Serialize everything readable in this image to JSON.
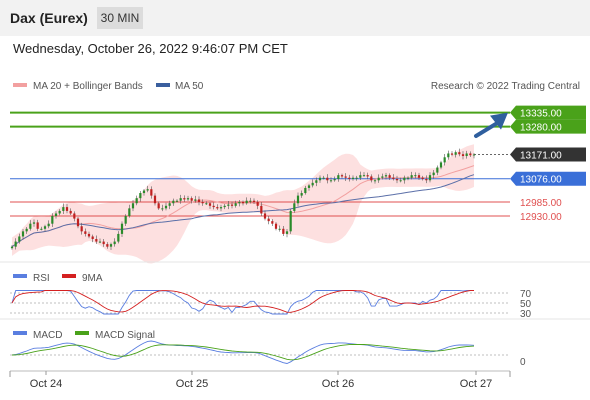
{
  "header": {
    "title": "Dax (Eurex)",
    "interval": "30 MIN"
  },
  "datetime": "Wednesday, October 26, 2022 9:46:07 PM CET",
  "legend": {
    "bb": "MA 20 + Bollinger Bands",
    "ma50": "MA 50",
    "credit": "Research © 2022 Trading Central"
  },
  "colors": {
    "resistance": "#4aa21a",
    "pivot": "#3a6fd8",
    "support": "#e05050",
    "last": "#333333",
    "ma20": "#f2a0a0",
    "band": "#fde0e0",
    "ma50": "#5b6fa8",
    "up": "#2a8a2a",
    "down": "#c02020",
    "rsi": "#5a7ee0",
    "rsi_ma": "#d42020",
    "macd": "#5a7ee0",
    "macd_signal": "#4aa21a",
    "arrow": "#2f5f9e"
  },
  "chart_data": [
    {
      "type": "candlestick",
      "x_labels": [
        "Oct 24",
        "Oct 25",
        "Oct 26",
        "Oct 27"
      ],
      "ylim": [
        12750,
        13400
      ],
      "levels": [
        {
          "value": 13335.0,
          "label": "13335.00",
          "kind": "resistance"
        },
        {
          "value": 13280.0,
          "label": "13280.00",
          "kind": "resistance"
        },
        {
          "value": 13171.0,
          "label": "13171.00",
          "kind": "last"
        },
        {
          "value": 13076.0,
          "label": "13076.00",
          "kind": "pivot"
        },
        {
          "value": 12985.0,
          "label": "12985.00",
          "kind": "support"
        },
        {
          "value": 12930.0,
          "label": "12930.00",
          "kind": "support"
        }
      ],
      "close": [
        12810,
        12830,
        12850,
        12870,
        12880,
        12900,
        12905,
        12880,
        12880,
        12890,
        12900,
        12930,
        12940,
        12950,
        12965,
        12950,
        12940,
        12920,
        12890,
        12870,
        12860,
        12850,
        12840,
        12830,
        12830,
        12820,
        12810,
        12820,
        12830,
        12860,
        12900,
        12930,
        12960,
        12980,
        13000,
        13020,
        13030,
        13035,
        13010,
        12980,
        12960,
        12960,
        12970,
        12980,
        12990,
        12990,
        13000,
        12995,
        13000,
        12990,
        12995,
        12985,
        12980,
        12980,
        12970,
        12965,
        12960,
        12965,
        12970,
        12975,
        12970,
        12980,
        12985,
        12980,
        12990,
        12990,
        12985,
        12970,
        12940,
        12920,
        12910,
        12900,
        12880,
        12880,
        12860,
        12870,
        12950,
        12980,
        13010,
        13020,
        13040,
        13050,
        13060,
        13070,
        13080,
        13080,
        13070,
        13070,
        13075,
        13090,
        13085,
        13080,
        13075,
        13080,
        13080,
        13090,
        13090,
        13085,
        13070,
        13070,
        13080,
        13085,
        13090,
        13080,
        13075,
        13070,
        13070,
        13080,
        13080,
        13090,
        13090,
        13080,
        13075,
        13070,
        13090,
        13100,
        13120,
        13140,
        13160,
        13175,
        13170,
        13180,
        13172,
        13165,
        13175,
        13168,
        13171
      ]
    },
    {
      "type": "line",
      "title": "RSI",
      "series": [
        {
          "name": "RSI"
        },
        {
          "name": "9MA"
        }
      ],
      "ticks": [
        70,
        50,
        30
      ]
    },
    {
      "type": "line",
      "title": "MACD",
      "series": [
        {
          "name": "MACD"
        },
        {
          "name": "MACD Signal"
        }
      ],
      "ticks": [
        0
      ]
    }
  ]
}
